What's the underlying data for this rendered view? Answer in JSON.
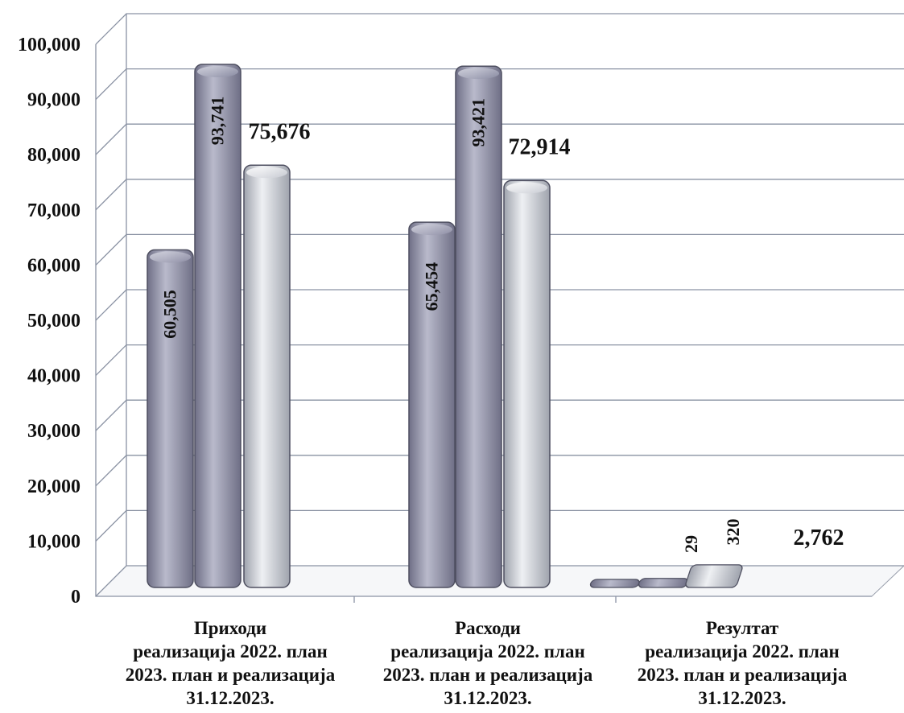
{
  "chart_data": {
    "type": "bar",
    "categories": [
      [
        "Приходи",
        "реализација 2022. план",
        "2023. план и реализација",
        "31.12.2023."
      ],
      [
        "Расходи",
        "реализација 2022. план",
        "2023. план и реализација",
        "31.12.2023."
      ],
      [
        "Резултат",
        "реализација 2022. план",
        "2023. план и реализација",
        "31.12.2023."
      ]
    ],
    "series": [
      {
        "values": [
          60505,
          65454,
          29
        ],
        "data_labels": [
          "60,505",
          "65,454",
          "29"
        ],
        "color": "#8f8fa6"
      },
      {
        "values": [
          93741,
          93421,
          320
        ],
        "data_labels": [
          "93,741",
          "93,421",
          "320"
        ],
        "color": "#8a8ca3"
      },
      {
        "values": [
          75676,
          72914,
          2762
        ],
        "data_labels": [
          "75,676",
          "72,914",
          "2,762"
        ],
        "color": "#c9ccd4"
      }
    ],
    "ylim": [
      0,
      100000
    ],
    "y_ticks": [
      "0",
      "10,000",
      "20,000",
      "30,000",
      "40,000",
      "50,000",
      "60,000",
      "70,000",
      "80,000",
      "90,000",
      "100,000"
    ],
    "grid": true,
    "legend": "none",
    "style": "3d cylinder"
  }
}
